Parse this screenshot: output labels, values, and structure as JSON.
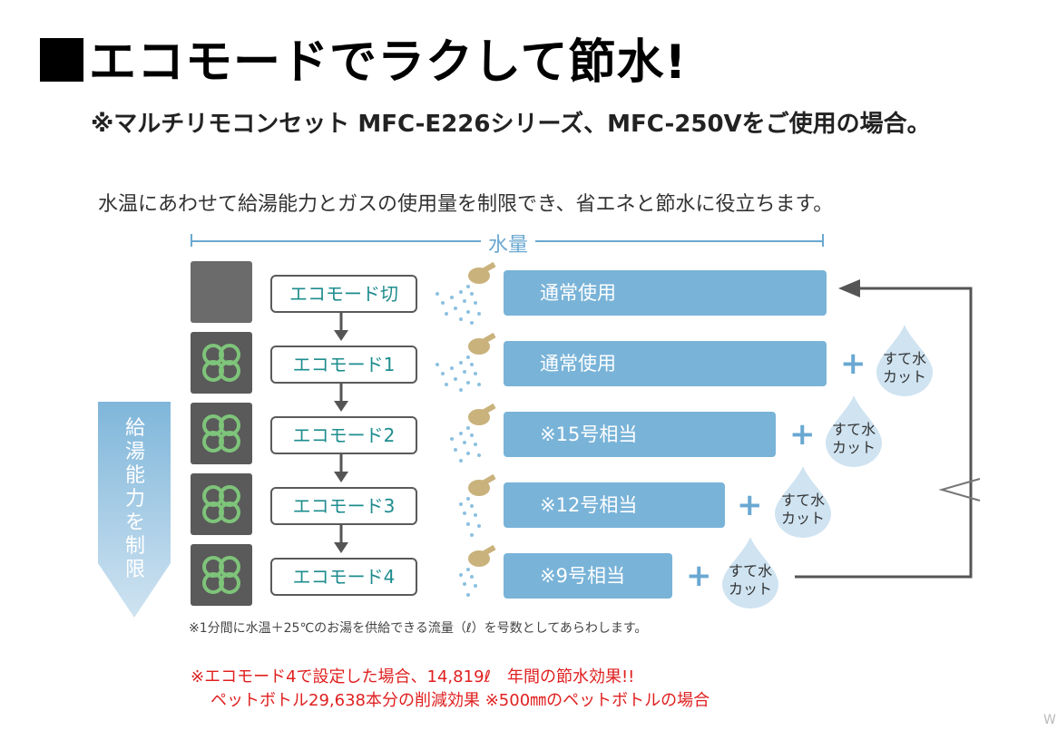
{
  "title": "エコモードでラクして節水!",
  "subtitle": "※マルチリモコンセット MFC-E226シリーズ、MFC-250Vをご使用の場合。",
  "description": "水温にあわせて給湯能力とガスの使用量を制限でき、省エネと節水に役立ちます。",
  "water_label": "水量",
  "side_label": "給湯能力を制限",
  "modes": [
    {
      "label": "エコモード切",
      "bar": "通常使用",
      "drop": ""
    },
    {
      "label": "エコモード1",
      "bar": "通常使用",
      "drop": "すて水\nカット"
    },
    {
      "label": "エコモード2",
      "bar": "※15号相当",
      "drop": "すて水\nカット"
    },
    {
      "label": "エコモード3",
      "bar": "※12号相当",
      "drop": "すて水\nカット"
    },
    {
      "label": "エコモード4",
      "bar": "※9号相当",
      "drop": "すて水\nカット"
    }
  ],
  "plus_symbol": "+",
  "footnote": "※1分間に水温＋25℃のお湯を供給できる流量（ℓ）を号数としてあらわします。",
  "effect_line1": "※エコモード4で設定した場合、14,819ℓ　年間の節水効果!!",
  "effect_line2": "ペットボトル29,638本分の削減効果 ※500㎜のペットボトルの場合",
  "corner_mark": "W",
  "colors": {
    "bar": "#79b3d8",
    "accent": "#6aa8d2",
    "mode_text": "#1e8c8e",
    "clover": "#7ec47a",
    "red": "#e02020"
  }
}
